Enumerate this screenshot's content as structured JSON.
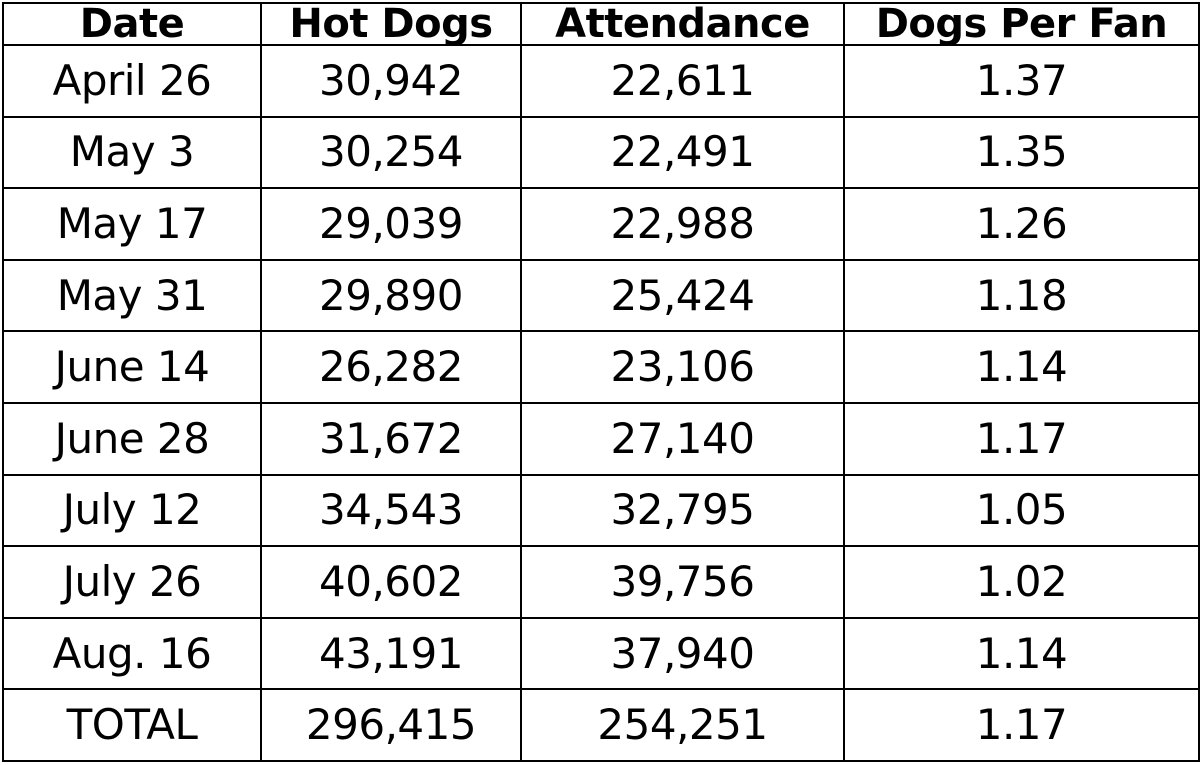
{
  "table": {
    "headers": [
      "Date",
      "Hot Dogs",
      "Attendance",
      "Dogs Per Fan"
    ],
    "rows": [
      [
        "April 26",
        "30,942",
        "22,611",
        "1.37"
      ],
      [
        "May 3",
        "30,254",
        "22,491",
        "1.35"
      ],
      [
        "May 17",
        "29,039",
        "22,988",
        "1.26"
      ],
      [
        "May 31",
        "29,890",
        "25,424",
        "1.18"
      ],
      [
        "June 14",
        "26,282",
        "23,106",
        "1.14"
      ],
      [
        "June 28",
        "31,672",
        "27,140",
        "1.17"
      ],
      [
        "July 12",
        "34,543",
        "32,795",
        "1.05"
      ],
      [
        "July 26",
        "40,602",
        "39,756",
        "1.02"
      ],
      [
        "Aug. 16",
        "43,191",
        "37,940",
        "1.14"
      ],
      [
        "TOTAL",
        "296,415",
        "254,251",
        "1.17"
      ]
    ]
  }
}
